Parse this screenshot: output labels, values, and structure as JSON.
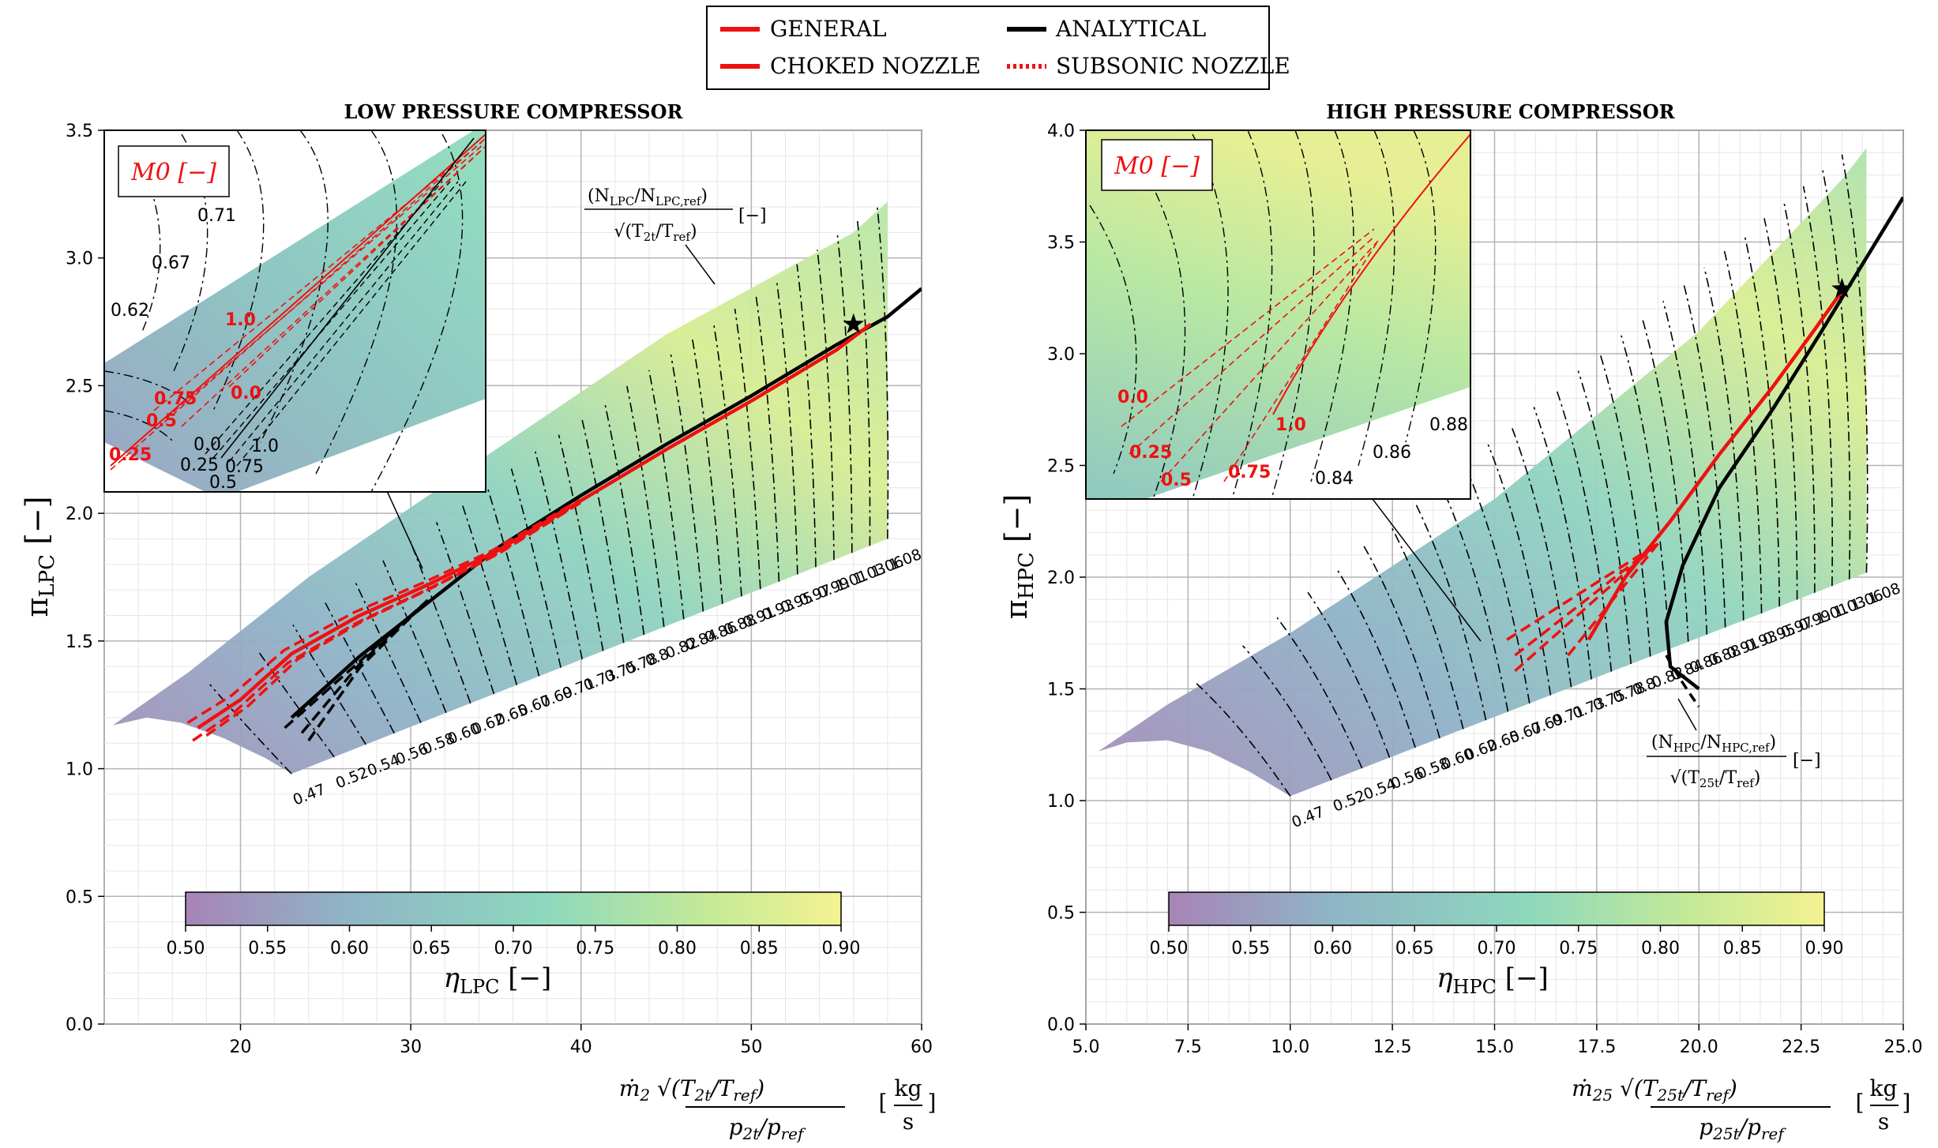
{
  "legend": {
    "items": [
      {
        "label": "GENERAL",
        "color": "#ee1111",
        "style": "solid"
      },
      {
        "label": "ANALYTICAL",
        "color": "#000000",
        "style": "solid"
      },
      {
        "label": "CHOKED NOZZLE",
        "color": "#ee1111",
        "style": "solid"
      },
      {
        "label": "SUBSONIC NOZZLE",
        "color": "#ee1111",
        "style": "dotted"
      }
    ]
  },
  "chart_data": [
    {
      "type": "line",
      "title": "LOW PRESSURE COMPRESSOR",
      "xlabel": "ṁ2 √(T2t/Tref) / (p2t/pref)   [kg/s]",
      "ylabel": "πLPC [−]",
      "xlim": [
        12,
        60
      ],
      "ylim": [
        0,
        3.5
      ],
      "xticks": [
        20,
        30,
        40,
        50,
        60
      ],
      "yticks": [
        0.0,
        0.5,
        1.0,
        1.5,
        2.0,
        2.5,
        3.0,
        3.5
      ],
      "grid": true,
      "map_region": [
        [
          12.5,
          1.17
        ],
        [
          14.5,
          1.2
        ],
        [
          16.5,
          1.18
        ],
        [
          19,
          1.12
        ],
        [
          21.5,
          1.04
        ],
        [
          23,
          0.98
        ],
        [
          58,
          1.9
        ],
        [
          58,
          3.22
        ],
        [
          56,
          3.1
        ],
        [
          45,
          2.7
        ],
        [
          35,
          2.25
        ],
        [
          24,
          1.75
        ],
        [
          17,
          1.38
        ]
      ],
      "speed_lines": [
        "0.47",
        "0.52",
        "0.54",
        "0.56",
        "0.58",
        "0.60",
        "0.62",
        "0.65",
        "0.67",
        "0.69",
        "0.71",
        "0.73",
        "0.75",
        "0.78",
        "0.8",
        "0.82",
        "0.84",
        "0.86",
        "0.88",
        "0.91",
        "0.93",
        "0.95",
        "0.97",
        "0.99",
        "1.01",
        "1.03",
        "1.06",
        "1.08"
      ],
      "speed_label": "(N_LPC/N_LPC,ref) / √(T2t/Tref) [−]",
      "colorbar": {
        "label": "ηLPC [−]",
        "min": 0.5,
        "max": 0.9,
        "ticks": [
          "0.50",
          "0.55",
          "0.60",
          "0.65",
          "0.70",
          "0.75",
          "0.80",
          "0.85",
          "0.90"
        ],
        "colormap": "viridis (alpha 0.5)"
      },
      "series": [
        {
          "name": "ANALYTICAL",
          "color": "#000000",
          "x": [
            23,
            27,
            31,
            35,
            40,
            45,
            50,
            55,
            58,
            60
          ],
          "y": [
            1.2,
            1.44,
            1.65,
            1.86,
            2.07,
            2.27,
            2.46,
            2.66,
            2.77,
            2.88
          ]
        },
        {
          "name": "GENERAL",
          "color": "#ee1111",
          "x": [
            17.5,
            20,
            23,
            27,
            31,
            35,
            40,
            45,
            50,
            55,
            57
          ],
          "y": [
            1.16,
            1.27,
            1.45,
            1.6,
            1.72,
            1.85,
            2.05,
            2.25,
            2.44,
            2.64,
            2.74
          ]
        }
      ],
      "design_point": {
        "x": 56,
        "y": 2.74
      },
      "inset": {
        "title": "M0 [−]",
        "speed_labels": [
          "0.62",
          "0.67",
          "0.71"
        ],
        "red_labels": [
          "1.0",
          "0.75",
          "0.5",
          "0.0",
          "0.25"
        ],
        "black_labels": [
          "0.0",
          "1.0",
          "0.25",
          "0.75",
          "0.5"
        ]
      }
    },
    {
      "type": "line",
      "title": "HIGH PRESSURE COMPRESSOR",
      "xlabel": "ṁ25 √(T25t/Tref) / (p25t/pref)   [kg/s]",
      "ylabel": "πHPC [−]",
      "xlim": [
        5,
        25
      ],
      "ylim": [
        0,
        4
      ],
      "xticks": [
        5.0,
        7.5,
        10.0,
        12.5,
        15.0,
        17.5,
        20.0,
        22.5,
        25.0
      ],
      "yticks": [
        0.0,
        0.5,
        1.0,
        1.5,
        2.0,
        2.5,
        3.0,
        3.5,
        4.0
      ],
      "grid": true,
      "map_region": [
        [
          5.3,
          1.22
        ],
        [
          6,
          1.26
        ],
        [
          7,
          1.27
        ],
        [
          8,
          1.22
        ],
        [
          9,
          1.13
        ],
        [
          10.0,
          1.02
        ],
        [
          24.1,
          2.02
        ],
        [
          24.1,
          3.92
        ],
        [
          23.5,
          3.78
        ],
        [
          20,
          3.1
        ],
        [
          15,
          2.35
        ],
        [
          10,
          1.75
        ],
        [
          7,
          1.43
        ]
      ],
      "speed_lines": [
        "0.47",
        "0.52",
        "0.54",
        "0.56",
        "0.58",
        "0.60",
        "0.62",
        "0.65",
        "0.67",
        "0.69",
        "0.71",
        "0.73",
        "0.75",
        "0.78",
        "0.8",
        "0.82",
        "0.84",
        "0.86",
        "0.88",
        "0.91",
        "0.93",
        "0.95",
        "0.97",
        "0.99",
        "1.01",
        "1.03",
        "1.06",
        "1.08"
      ],
      "speed_label": "(N_HPC/N_HPC,ref) / √(T25t/Tref) [−]",
      "colorbar": {
        "label": "ηHPC [−]",
        "min": 0.5,
        "max": 0.9,
        "ticks": [
          "0.50",
          "0.55",
          "0.60",
          "0.65",
          "0.70",
          "0.75",
          "0.80",
          "0.85",
          "0.90"
        ],
        "colormap": "viridis (alpha 0.5)"
      },
      "series": [
        {
          "name": "ANALYTICAL",
          "color": "#000000",
          "x": [
            20.0,
            19.3,
            19.2,
            19.6,
            20.5,
            21.8,
            23.0,
            24.0,
            25.0
          ],
          "y": [
            1.5,
            1.6,
            1.8,
            2.05,
            2.4,
            2.75,
            3.1,
            3.4,
            3.7
          ]
        },
        {
          "name": "GENERAL",
          "color": "#ee1111",
          "x": [
            17.3,
            18.2,
            19.3,
            20.5,
            21.8,
            22.8,
            23.5
          ],
          "y": [
            1.72,
            2.0,
            2.25,
            2.55,
            2.85,
            3.1,
            3.28
          ]
        }
      ],
      "design_point": {
        "x": 23.5,
        "y": 3.29
      },
      "inset": {
        "title": "M0 [−]",
        "speed_labels": [
          "0.84",
          "0.86",
          "0.88"
        ],
        "red_labels": [
          "0.0",
          "0.25",
          "0.5",
          "0.75",
          "1.0"
        ]
      }
    }
  ]
}
